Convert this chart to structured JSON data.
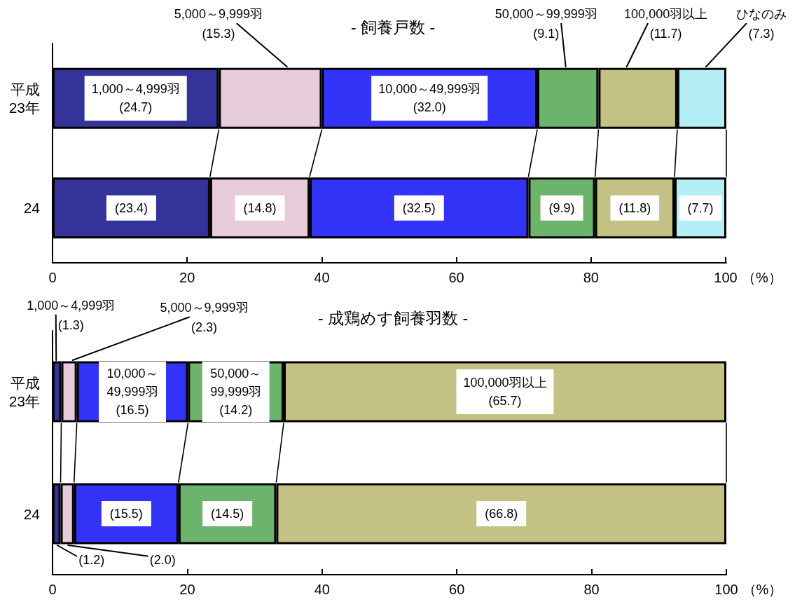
{
  "chart_data": [
    {
      "type": "bar",
      "orientation": "horizontal",
      "stacked": true,
      "title": "- 飼養戸数 -",
      "xlabel": "（%）",
      "categories": [
        "平成23年",
        "24"
      ],
      "series": [
        {
          "name": "1,000～4,999羽",
          "color": "#333399",
          "values": [
            24.7,
            23.4
          ],
          "value_labels": [
            "(24.7)",
            "(23.4)"
          ]
        },
        {
          "name": "5,000～9,999羽",
          "color": "#e6cbd9",
          "values": [
            15.3,
            14.8
          ],
          "value_labels": [
            "(15.3)",
            "(14.8)"
          ]
        },
        {
          "name": "10,000～49,999羽",
          "color": "#3333f8",
          "values": [
            32.0,
            32.5
          ],
          "value_labels": [
            "(32.0)",
            "(32.5)"
          ]
        },
        {
          "name": "50,000～99,999羽",
          "color": "#6cb46c",
          "values": [
            9.1,
            9.9
          ],
          "value_labels": [
            "(9.1)",
            "(9.9)"
          ]
        },
        {
          "name": "100,000羽以上",
          "color": "#c4c184",
          "values": [
            11.7,
            11.8
          ],
          "value_labels": [
            "(11.7)",
            "(11.8)"
          ]
        },
        {
          "name": "ひなのみ",
          "color": "#b2eef4",
          "values": [
            7.3,
            7.7
          ],
          "value_labels": [
            "(7.3)",
            "(7.7)"
          ]
        }
      ],
      "xlim": [
        0,
        100.1
      ],
      "xticks": [
        0,
        20,
        40,
        60,
        80,
        100
      ]
    },
    {
      "type": "bar",
      "orientation": "horizontal",
      "stacked": true,
      "title": "- 成鶏めす飼養羽数 -",
      "xlabel": "（%）",
      "categories": [
        "平成23年",
        "24"
      ],
      "series": [
        {
          "name": "1,000～4,999羽",
          "color": "#333399",
          "values": [
            1.3,
            1.2
          ],
          "value_labels": [
            "(1.3)",
            "(1.2)"
          ]
        },
        {
          "name": "5,000～9,999羽",
          "color": "#e6cbd9",
          "values": [
            2.3,
            2.0
          ],
          "value_labels": [
            "(2.3)",
            "(2.0)"
          ]
        },
        {
          "name": "10,000～49,999羽",
          "color": "#3333f8",
          "values": [
            16.5,
            15.5
          ],
          "value_labels": [
            "(16.5)",
            "(15.5)"
          ]
        },
        {
          "name": "50,000～99,999羽",
          "color": "#6cb46c",
          "values": [
            14.2,
            14.5
          ],
          "value_labels": [
            "(14.2)",
            "(14.5)"
          ]
        },
        {
          "name": "100,000羽以上",
          "color": "#c4c184",
          "values": [
            65.7,
            66.8
          ],
          "value_labels": [
            "(65.7)",
            "(66.8)"
          ]
        }
      ],
      "xlim": [
        0,
        100
      ],
      "xticks": [
        0,
        20,
        40,
        60,
        80,
        100
      ]
    }
  ]
}
